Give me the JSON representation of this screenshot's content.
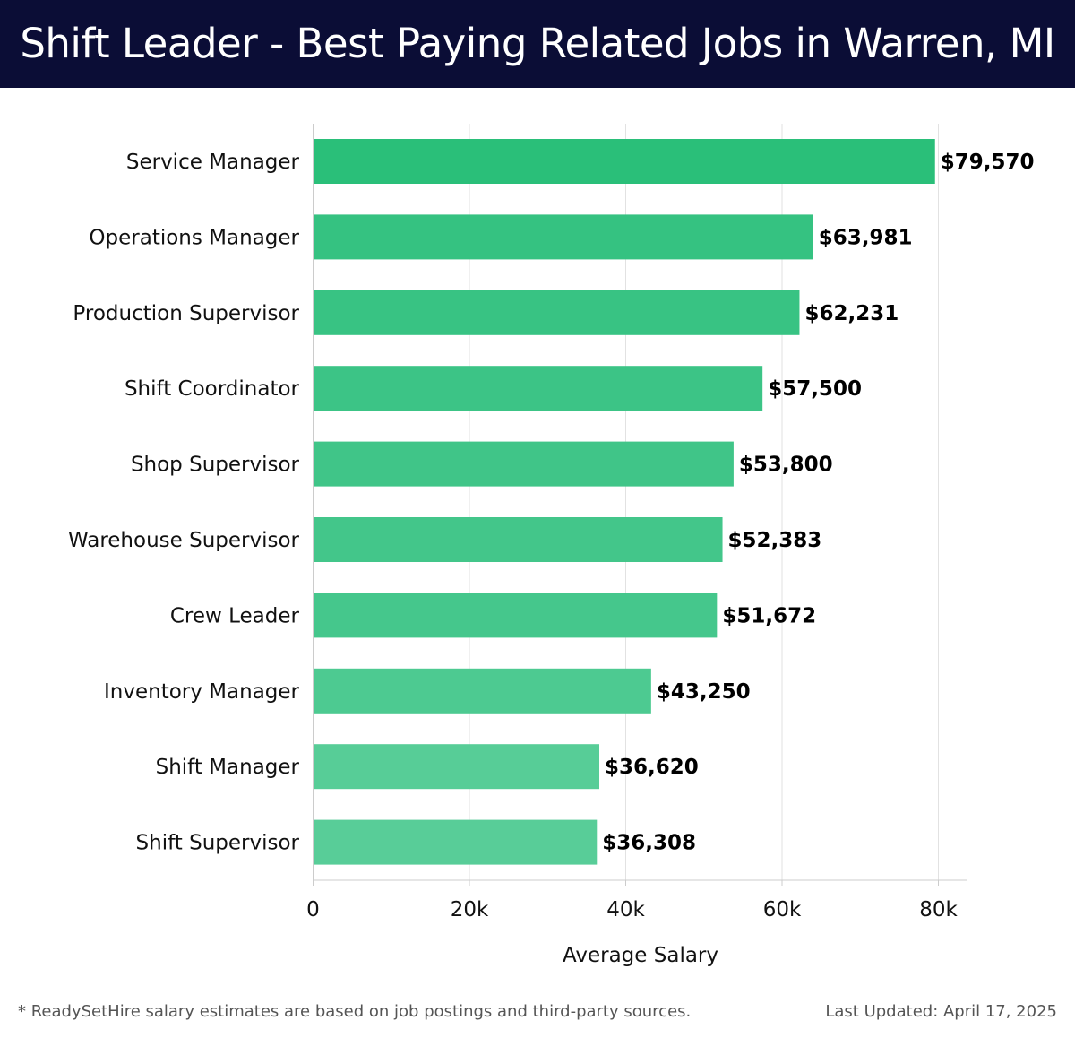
{
  "header": {
    "title": "Shift Leader - Best Paying Related Jobs in Warren, MI"
  },
  "chart_data": {
    "type": "bar",
    "orientation": "horizontal",
    "categories": [
      "Service Manager",
      "Operations Manager",
      "Production Supervisor",
      "Shift Coordinator",
      "Shop Supervisor",
      "Warehouse Supervisor",
      "Crew Leader",
      "Inventory Manager",
      "Shift Manager",
      "Shift Supervisor"
    ],
    "values": [
      79570,
      63981,
      62231,
      57500,
      53800,
      52383,
      51672,
      43250,
      36620,
      36308
    ],
    "value_labels": [
      "$79,570",
      "$63,981",
      "$62,231",
      "$57,500",
      "$53,800",
      "$52,383",
      "$51,672",
      "$43,250",
      "$36,620",
      "$36,308"
    ],
    "xlabel": "Average Salary",
    "xlim": [
      0,
      83500
    ],
    "x_ticks": [
      0,
      20000,
      40000,
      60000,
      80000
    ],
    "x_tick_labels": [
      "0",
      "20k",
      "40k",
      "60k",
      "80k"
    ],
    "grid": "vertical",
    "bar_colors": [
      "#2abf79",
      "#35c281",
      "#38c383",
      "#3cc486",
      "#40c588",
      "#43c68a",
      "#45c78c",
      "#4dca91",
      "#57cd97",
      "#58cd98"
    ]
  },
  "footer": {
    "note": "* ReadySetHire salary estimates are based on job postings and third-party sources.",
    "updated": "Last Updated: April 17, 2025"
  }
}
